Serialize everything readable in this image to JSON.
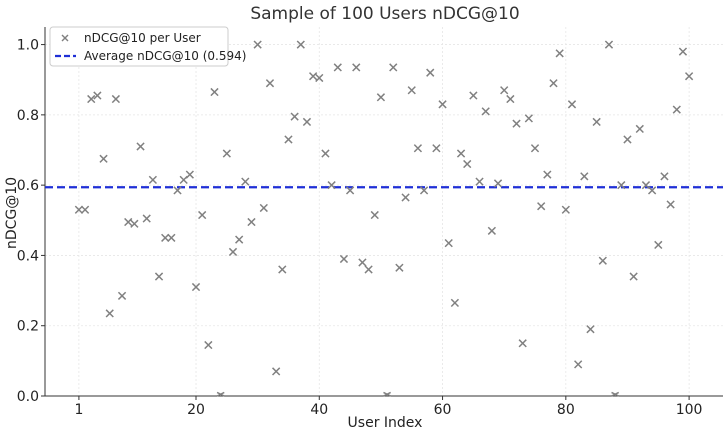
{
  "chart_data": {
    "type": "scatter",
    "title": "Sample of 100 Users nDCG@10",
    "xlabel": "User Index",
    "ylabel": "nDCG@10",
    "xlim": [
      -4.5,
      105.5
    ],
    "ylim": [
      0.0,
      1.05
    ],
    "xticks": [
      1,
      20,
      40,
      60,
      80,
      100
    ],
    "xtick_labels": [
      "1",
      "20",
      "40",
      "60",
      "80",
      "100"
    ],
    "yticks": [
      0.0,
      0.2,
      0.4,
      0.6,
      0.8,
      1.0
    ],
    "ytick_labels": [
      "0.0",
      "0.2",
      "0.4",
      "0.6",
      "0.8",
      "1.0"
    ],
    "grid": true,
    "legend_position": "top-left",
    "series": [
      {
        "name": "nDCG@10 per User",
        "marker": "x",
        "color": "#808080",
        "x": [
          1,
          2,
          3,
          4,
          5,
          6,
          7,
          8,
          9,
          10,
          11,
          12,
          13,
          14,
          15,
          16,
          17,
          18,
          19,
          20,
          21,
          22,
          23,
          24,
          25,
          26,
          27,
          28,
          29,
          30,
          31,
          32,
          33,
          34,
          35,
          36,
          37,
          38,
          39,
          40,
          41,
          42,
          43,
          44,
          45,
          46,
          47,
          48,
          49,
          50,
          51,
          52,
          53,
          54,
          55,
          56,
          57,
          58,
          59,
          60,
          61,
          62,
          63,
          64,
          65,
          66,
          67,
          68,
          69,
          70,
          71,
          72,
          73,
          74,
          75,
          76,
          77,
          78,
          79,
          80,
          81,
          82,
          83,
          84,
          85,
          86,
          87,
          88,
          89,
          90,
          91,
          92,
          93,
          94,
          95,
          96,
          97,
          98,
          99,
          100
        ],
        "y": [
          0.53,
          0.53,
          0.845,
          0.855,
          0.675,
          0.235,
          0.845,
          0.285,
          0.495,
          0.49,
          0.71,
          0.505,
          0.615,
          0.34,
          0.45,
          0.45,
          0.585,
          0.615,
          0.63,
          0.31,
          0.515,
          0.145,
          0.865,
          0.0,
          0.69,
          0.41,
          0.445,
          0.61,
          0.495,
          1.0,
          0.535,
          0.89,
          0.07,
          0.36,
          0.73,
          0.795,
          1.0,
          0.78,
          0.91,
          0.905,
          0.69,
          0.6,
          0.935,
          0.39,
          0.585,
          0.935,
          0.38,
          0.36,
          0.515,
          0.85,
          0.0,
          0.935,
          0.365,
          0.565,
          0.87,
          0.705,
          0.585,
          0.92,
          0.705,
          0.83,
          0.435,
          0.265,
          0.69,
          0.66,
          0.855,
          0.61,
          0.81,
          0.47,
          0.605,
          0.87,
          0.845,
          0.775,
          0.15,
          0.79,
          0.705,
          0.54,
          0.63,
          0.89,
          0.975,
          0.53,
          0.83,
          0.09,
          0.625,
          0.19,
          0.78,
          0.385,
          1.0,
          0.0,
          0.6,
          0.73,
          0.34,
          0.76,
          0.6,
          0.585,
          0.43,
          0.625,
          0.545,
          0.815,
          0.98,
          0.91
        ]
      },
      {
        "name": "Average nDCG@10 (0.594)",
        "type": "hline",
        "y": 0.594,
        "color": "#1f2fd6"
      }
    ]
  }
}
